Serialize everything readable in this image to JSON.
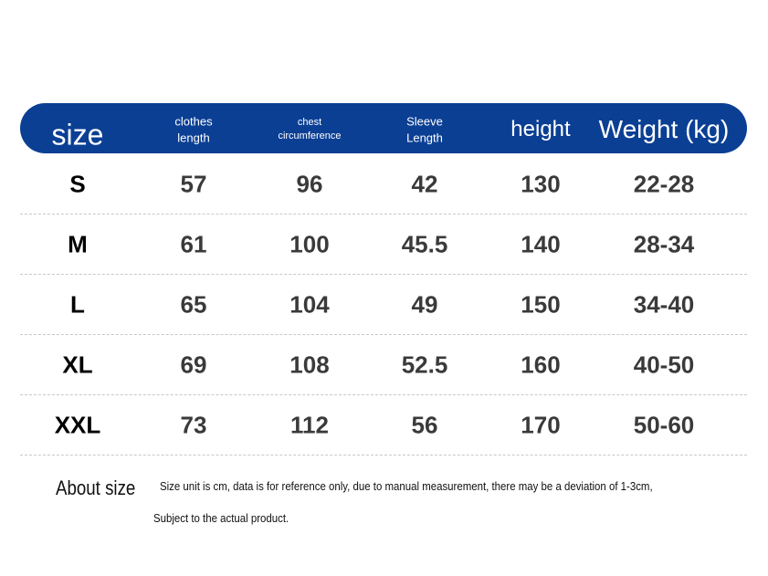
{
  "table": {
    "header": [
      "size",
      "clothes length",
      "chest circumference",
      "Sleeve Length",
      "height",
      "Weight (kg)"
    ],
    "rows": [
      [
        "S",
        "57",
        "96",
        "42",
        "130",
        "22-28"
      ],
      [
        "M",
        "61",
        "100",
        "45.5",
        "140",
        "28-34"
      ],
      [
        "L",
        "65",
        "104",
        "49",
        "150",
        "34-40"
      ],
      [
        "XL",
        "69",
        "108",
        "52.5",
        "160",
        "40-50"
      ],
      [
        "XXL",
        "73",
        "112",
        "56",
        "170",
        "50-60"
      ]
    ]
  },
  "about": {
    "label": "About size",
    "note": [
      "Size unit is cm, data is for reference only, due to manual measurement, there may be a deviation of 1-3cm,",
      "Subject to the actual product."
    ]
  }
}
